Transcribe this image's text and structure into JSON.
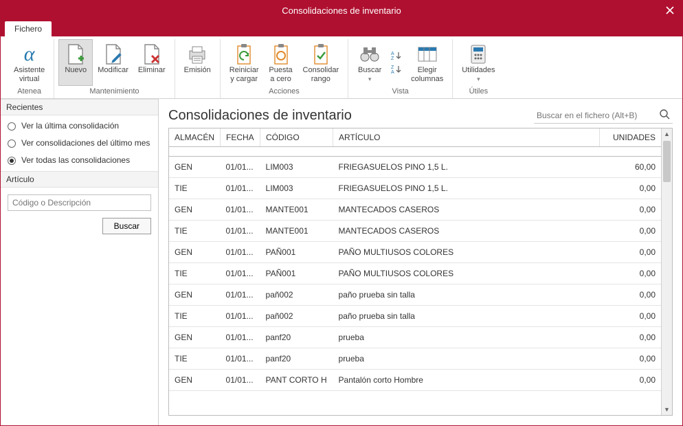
{
  "colors": {
    "brand": "#b01030",
    "border": "#d0d0d0",
    "icon_blue": "#2a7ab0",
    "icon_green": "#3b9b3b",
    "icon_red": "#cc3333",
    "icon_orange": "#e08a2a",
    "icon_gray": "#666666"
  },
  "window": {
    "title": "Consolidaciones de inventario"
  },
  "tab": {
    "label": "Fichero"
  },
  "ribbon": {
    "groups": [
      {
        "label": "Atenea",
        "buttons": [
          {
            "id": "asistente",
            "label1": "Asistente",
            "label2": "virtual"
          }
        ]
      },
      {
        "label": "Mantenimiento",
        "buttons": [
          {
            "id": "nuevo",
            "label1": "Nuevo",
            "label2": "",
            "selected": true
          },
          {
            "id": "modificar",
            "label1": "Modificar",
            "label2": ""
          },
          {
            "id": "eliminar",
            "label1": "Eliminar",
            "label2": ""
          }
        ]
      },
      {
        "label": "",
        "buttons": [
          {
            "id": "emision",
            "label1": "Emisión",
            "label2": ""
          }
        ]
      },
      {
        "label": "Acciones",
        "buttons": [
          {
            "id": "reiniciar",
            "label1": "Reiniciar",
            "label2": "y cargar"
          },
          {
            "id": "puesta",
            "label1": "Puesta",
            "label2": "a cero"
          },
          {
            "id": "consolidar",
            "label1": "Consolidar",
            "label2": "rango"
          }
        ]
      },
      {
        "label": "Vista",
        "buttons": [
          {
            "id": "buscar",
            "label1": "Buscar",
            "label2": ""
          },
          {
            "id": "elegir",
            "label1": "Elegir",
            "label2": "columnas"
          }
        ],
        "small": [
          {
            "id": "sort-asc",
            "label": "A↓"
          },
          {
            "id": "sort-desc",
            "label": "Z↓"
          }
        ]
      },
      {
        "label": "Útiles",
        "buttons": [
          {
            "id": "utilidades",
            "label1": "Utilidades",
            "label2": ""
          }
        ]
      }
    ]
  },
  "sidebar": {
    "recent_label": "Recientes",
    "article_label": "Artículo",
    "options": [
      {
        "label": "Ver la última consolidación",
        "checked": false
      },
      {
        "label": "Ver consolidaciones del último mes",
        "checked": false
      },
      {
        "label": "Ver todas las consolidaciones",
        "checked": true
      }
    ],
    "article_placeholder": "Código o Descripción",
    "search_button": "Buscar"
  },
  "main": {
    "title": "Consolidaciones de inventario",
    "search_placeholder": "Buscar en el fichero (Alt+B)"
  },
  "table": {
    "columns": [
      "ALMACÉN",
      "FECHA",
      "CÓDIGO",
      "ARTÍCULO",
      "UNIDADES"
    ],
    "rows": [
      [
        "GEN",
        "01/01...",
        "LIM003",
        "FRIEGASUELOS PINO 1,5 L.",
        "60,00"
      ],
      [
        "TIE",
        "01/01...",
        "LIM003",
        "FRIEGASUELOS PINO 1,5 L.",
        "0,00"
      ],
      [
        "GEN",
        "01/01...",
        "MANTE001",
        "MANTECADOS CASEROS",
        "0,00"
      ],
      [
        "TIE",
        "01/01...",
        "MANTE001",
        "MANTECADOS CASEROS",
        "0,00"
      ],
      [
        "GEN",
        "01/01...",
        "PAÑ001",
        "PAÑO MULTIUSOS COLORES",
        "0,00"
      ],
      [
        "TIE",
        "01/01...",
        "PAÑ001",
        "PAÑO MULTIUSOS COLORES",
        "0,00"
      ],
      [
        "GEN",
        "01/01...",
        "pañ002",
        "paño prueba sin talla",
        "0,00"
      ],
      [
        "TIE",
        "01/01...",
        "pañ002",
        "paño prueba sin talla",
        "0,00"
      ],
      [
        "GEN",
        "01/01...",
        "panf20",
        "prueba",
        "0,00"
      ],
      [
        "TIE",
        "01/01...",
        "panf20",
        "prueba",
        "0,00"
      ],
      [
        "GEN",
        "01/01...",
        "PANT CORTO H",
        "Pantalón corto Hombre",
        "0,00"
      ]
    ]
  }
}
